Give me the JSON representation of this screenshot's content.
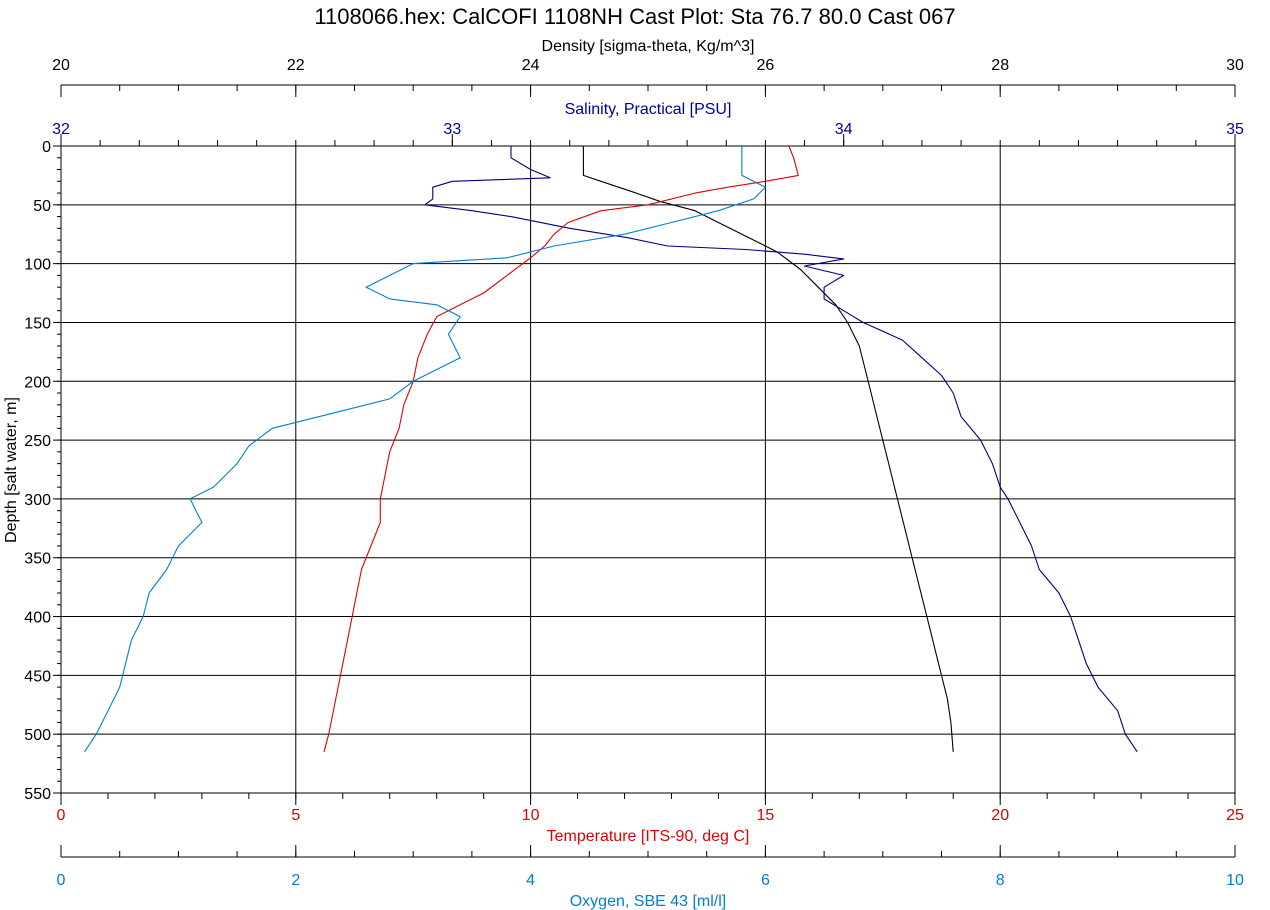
{
  "chart_data": {
    "type": "line",
    "title": "1108066.hex: CalCOFI 1108NH Cast Plot: Sta 76.7 80.0 Cast 067",
    "orientation": "depth-profile (y increases downward)",
    "y_axis": {
      "label": "Depth [salt water, m]",
      "range": [
        0,
        550
      ],
      "ticks": [
        "0",
        "50",
        "100",
        "150",
        "200",
        "250",
        "300",
        "350",
        "400",
        "450",
        "500",
        "550"
      ]
    },
    "grid": true,
    "axes": [
      {
        "id": "density",
        "position": "top",
        "label": "Density [sigma-theta, Kg/m^3]",
        "range": [
          20,
          30
        ],
        "ticks": [
          "20",
          "22",
          "24",
          "26",
          "28",
          "30"
        ],
        "color": "#000000"
      },
      {
        "id": "salinity",
        "position": "top",
        "label": "Salinity, Practical [PSU]",
        "range": [
          32,
          35
        ],
        "ticks": [
          "32",
          "33",
          "34",
          "35"
        ],
        "color": "#0000a0"
      },
      {
        "id": "temperature",
        "position": "bottom",
        "label": "Temperature [ITS-90, deg C]",
        "range": [
          0,
          25
        ],
        "ticks": [
          "0",
          "5",
          "10",
          "15",
          "20",
          "25"
        ],
        "color": "#e00000"
      },
      {
        "id": "oxygen",
        "position": "bottom",
        "label": "Oxygen, SBE 43 [ml/l]",
        "range": [
          0,
          10
        ],
        "ticks": [
          "0",
          "2",
          "4",
          "6",
          "8",
          "10"
        ],
        "color": "#0080d0"
      }
    ],
    "series": [
      {
        "axis": "density",
        "color": "#000000",
        "points": [
          [
            24.45,
            0
          ],
          [
            24.45,
            10
          ],
          [
            24.45,
            25
          ],
          [
            24.6,
            30
          ],
          [
            24.9,
            40
          ],
          [
            25.1,
            47
          ],
          [
            25.4,
            55
          ],
          [
            25.6,
            65
          ],
          [
            25.9,
            80
          ],
          [
            26.1,
            90
          ],
          [
            26.3,
            105
          ],
          [
            26.45,
            120
          ],
          [
            26.6,
            135
          ],
          [
            26.7,
            150
          ],
          [
            26.8,
            170
          ],
          [
            26.85,
            190
          ],
          [
            26.9,
            210
          ],
          [
            26.95,
            230
          ],
          [
            27.0,
            250
          ],
          [
            27.05,
            270
          ],
          [
            27.1,
            290
          ],
          [
            27.15,
            310
          ],
          [
            27.2,
            330
          ],
          [
            27.25,
            350
          ],
          [
            27.3,
            370
          ],
          [
            27.35,
            390
          ],
          [
            27.4,
            410
          ],
          [
            27.45,
            430
          ],
          [
            27.5,
            450
          ],
          [
            27.55,
            470
          ],
          [
            27.58,
            490
          ],
          [
            27.6,
            515
          ]
        ]
      },
      {
        "axis": "salinity",
        "color": "#000080",
        "points": [
          [
            33.15,
            0
          ],
          [
            33.15,
            10
          ],
          [
            33.2,
            20
          ],
          [
            33.25,
            27
          ],
          [
            33.0,
            30
          ],
          [
            32.95,
            35
          ],
          [
            32.95,
            45
          ],
          [
            32.93,
            50
          ],
          [
            33.05,
            55
          ],
          [
            33.15,
            60
          ],
          [
            33.3,
            70
          ],
          [
            33.45,
            78
          ],
          [
            33.55,
            85
          ],
          [
            33.75,
            88
          ],
          [
            33.9,
            92
          ],
          [
            34.0,
            96
          ],
          [
            33.9,
            102
          ],
          [
            34.0,
            110
          ],
          [
            33.95,
            120
          ],
          [
            33.95,
            130
          ],
          [
            34.0,
            140
          ],
          [
            34.05,
            150
          ],
          [
            34.15,
            165
          ],
          [
            34.2,
            180
          ],
          [
            34.25,
            195
          ],
          [
            34.28,
            210
          ],
          [
            34.3,
            230
          ],
          [
            34.35,
            250
          ],
          [
            34.38,
            270
          ],
          [
            34.4,
            290
          ],
          [
            34.42,
            300
          ],
          [
            34.45,
            320
          ],
          [
            34.48,
            340
          ],
          [
            34.5,
            360
          ],
          [
            34.55,
            380
          ],
          [
            34.58,
            400
          ],
          [
            34.6,
            420
          ],
          [
            34.62,
            440
          ],
          [
            34.65,
            460
          ],
          [
            34.7,
            480
          ],
          [
            34.72,
            500
          ],
          [
            34.75,
            515
          ]
        ]
      },
      {
        "axis": "temperature",
        "color": "#e00000",
        "points": [
          [
            15.5,
            0
          ],
          [
            15.6,
            10
          ],
          [
            15.7,
            25
          ],
          [
            15.0,
            30
          ],
          [
            14.2,
            35
          ],
          [
            13.5,
            40
          ],
          [
            12.5,
            50
          ],
          [
            11.5,
            55
          ],
          [
            10.8,
            65
          ],
          [
            10.5,
            75
          ],
          [
            10.3,
            85
          ],
          [
            10.0,
            95
          ],
          [
            9.5,
            110
          ],
          [
            9.0,
            125
          ],
          [
            8.5,
            135
          ],
          [
            8.0,
            145
          ],
          [
            7.8,
            160
          ],
          [
            7.6,
            180
          ],
          [
            7.5,
            200
          ],
          [
            7.3,
            220
          ],
          [
            7.2,
            240
          ],
          [
            7.0,
            260
          ],
          [
            6.9,
            280
          ],
          [
            6.8,
            300
          ],
          [
            6.8,
            320
          ],
          [
            6.6,
            340
          ],
          [
            6.4,
            360
          ],
          [
            6.3,
            380
          ],
          [
            6.2,
            400
          ],
          [
            6.1,
            420
          ],
          [
            6.0,
            440
          ],
          [
            5.9,
            460
          ],
          [
            5.8,
            480
          ],
          [
            5.7,
            500
          ],
          [
            5.6,
            515
          ]
        ]
      },
      {
        "axis": "oxygen",
        "color": "#0080d0",
        "points": [
          [
            5.8,
            0
          ],
          [
            5.8,
            10
          ],
          [
            5.8,
            25
          ],
          [
            6.0,
            35
          ],
          [
            5.9,
            45
          ],
          [
            5.6,
            55
          ],
          [
            5.2,
            65
          ],
          [
            4.8,
            75
          ],
          [
            4.2,
            85
          ],
          [
            3.8,
            95
          ],
          [
            3.0,
            100
          ],
          [
            2.8,
            110
          ],
          [
            2.6,
            120
          ],
          [
            2.8,
            130
          ],
          [
            3.2,
            135
          ],
          [
            3.4,
            145
          ],
          [
            3.3,
            160
          ],
          [
            3.4,
            180
          ],
          [
            3.2,
            190
          ],
          [
            3.0,
            200
          ],
          [
            2.8,
            215
          ],
          [
            2.4,
            225
          ],
          [
            1.8,
            240
          ],
          [
            1.6,
            255
          ],
          [
            1.5,
            270
          ],
          [
            1.3,
            290
          ],
          [
            1.1,
            300
          ],
          [
            1.2,
            320
          ],
          [
            1.0,
            340
          ],
          [
            0.9,
            360
          ],
          [
            0.75,
            380
          ],
          [
            0.7,
            400
          ],
          [
            0.6,
            420
          ],
          [
            0.55,
            440
          ],
          [
            0.5,
            460
          ],
          [
            0.4,
            480
          ],
          [
            0.3,
            500
          ],
          [
            0.2,
            515
          ]
        ]
      }
    ]
  }
}
